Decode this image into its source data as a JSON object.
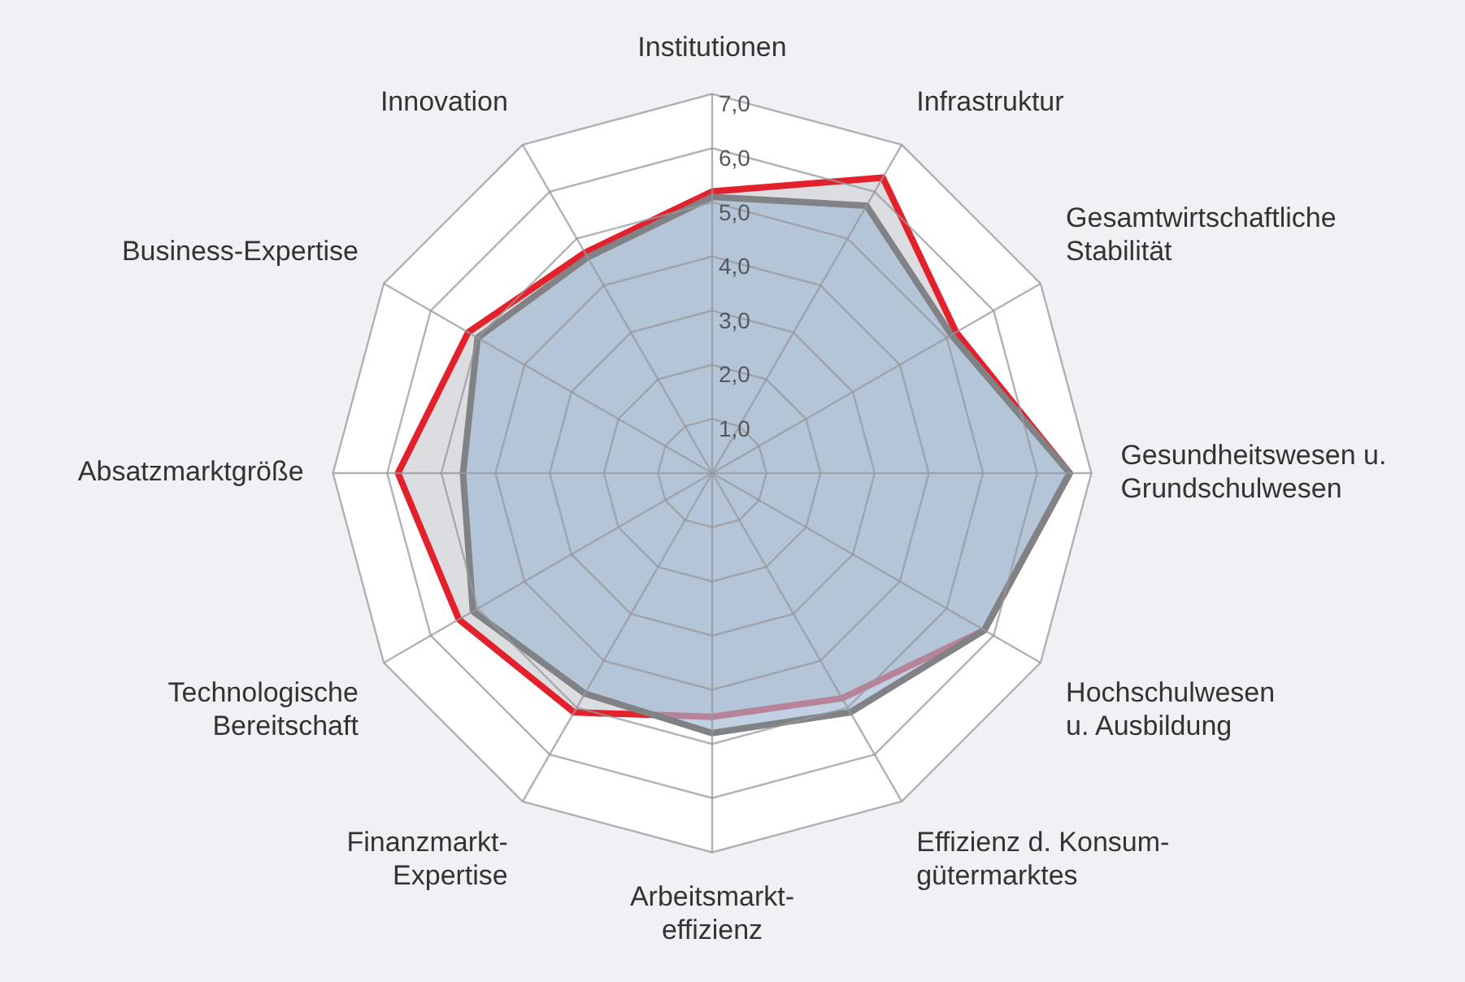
{
  "chart_data": {
    "type": "radar",
    "categories": [
      "Institutionen",
      "Infrastruktur",
      "Gesamtwirtschaftliche\nStabilität",
      "Gesundheitswesen u.\nGrundschulwesen",
      "Hochschulwesen\nu. Ausbildung",
      "Effizienz d. Konsum-\ngütermarktes",
      "Arbeitsmarkt-\neffizienz",
      "Finanzmarkt-\nExpertise",
      "Technologische\nBereitschaft",
      "Absatzmarktgröße",
      "Business-Expertise",
      "Innovation"
    ],
    "series": [
      {
        "color": "#e3212d",
        "values": [
          5.2,
          6.3,
          5.2,
          6.6,
          5.8,
          4.8,
          4.5,
          5.1,
          5.4,
          5.8,
          5.2,
          4.7
        ]
      },
      {
        "color": "#808285",
        "values": [
          5.1,
          5.7,
          5.1,
          6.6,
          5.8,
          5.1,
          4.8,
          4.7,
          5.1,
          4.6,
          5.0,
          4.6
        ]
      }
    ],
    "ylim": [
      0,
      7
    ],
    "yticks": [
      {
        "value": 1,
        "label": "1,0"
      },
      {
        "value": 2,
        "label": "2,0"
      },
      {
        "value": 3,
        "label": "3,0"
      },
      {
        "value": 4,
        "label": "4,0"
      },
      {
        "value": 5,
        "label": "5,0"
      },
      {
        "value": 6,
        "label": "6,0"
      },
      {
        "value": 7,
        "label": "7,0"
      }
    ],
    "grid": true,
    "legend": false
  }
}
